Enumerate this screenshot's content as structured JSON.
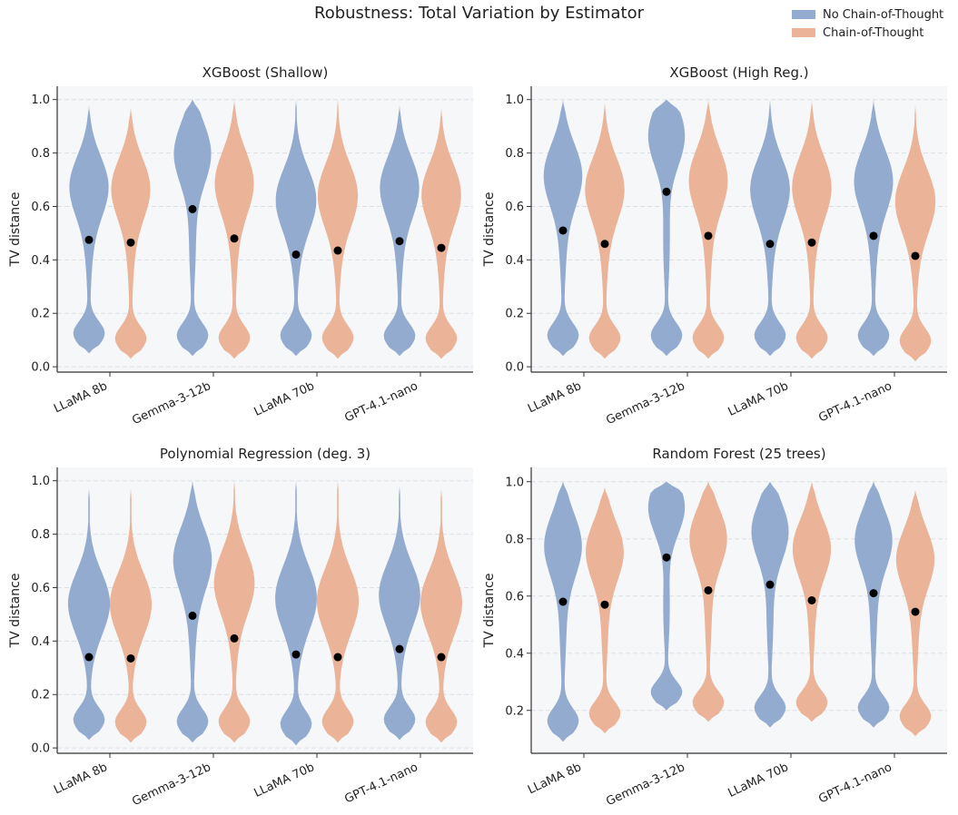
{
  "figure": {
    "title": "Robustness: Total Variation by Estimator"
  },
  "legend": [
    {
      "label": "No Chain-of-Thought",
      "color": "#94abd0"
    },
    {
      "label": "Chain-of-Thought",
      "color": "#ebb398"
    }
  ],
  "colors": {
    "no_cot": "#94abd0",
    "cot": "#ebb398",
    "mean_marker": "#000000",
    "panel_background": "#f6f7f9",
    "grid": "#dcdfe6"
  },
  "chart_data": [
    {
      "type": "violin",
      "title": "XGBoost (Shallow)",
      "ylabel": "TV distance",
      "ylim": [
        -0.02,
        1.05
      ],
      "yticks": [
        "0.0",
        "0.2",
        "0.4",
        "0.6",
        "0.8",
        "1.0"
      ],
      "ytick_values": [
        0,
        0.2,
        0.4,
        0.6,
        0.8,
        1.0
      ],
      "grid": "horizontal dashed",
      "categories": [
        "LLaMA 8b",
        "Gemma-3-12b",
        "LLaMA 70b",
        "GPT-4.1-nano"
      ],
      "series": [
        {
          "name": "No Chain-of-Thought",
          "means": [
            0.475,
            0.59,
            0.42,
            0.47
          ],
          "ranges": [
            [
              0.05,
              0.98
            ],
            [
              0.04,
              1.0
            ],
            [
              0.04,
              1.0
            ],
            [
              0.04,
              0.98
            ]
          ]
        },
        {
          "name": "Chain-of-Thought",
          "means": [
            0.465,
            0.48,
            0.435,
            0.445
          ],
          "ranges": [
            [
              0.03,
              0.97
            ],
            [
              0.03,
              1.0
            ],
            [
              0.03,
              1.0
            ],
            [
              0.03,
              0.97
            ]
          ]
        }
      ]
    },
    {
      "type": "violin",
      "title": "XGBoost (High Reg.)",
      "ylabel": "TV distance",
      "ylim": [
        -0.02,
        1.05
      ],
      "yticks": [
        "0.0",
        "0.2",
        "0.4",
        "0.6",
        "0.8",
        "1.0"
      ],
      "ytick_values": [
        0,
        0.2,
        0.4,
        0.6,
        0.8,
        1.0
      ],
      "grid": "horizontal dashed",
      "categories": [
        "LLaMA 8b",
        "Gemma-3-12b",
        "LLaMA 70b",
        "GPT-4.1-nano"
      ],
      "series": [
        {
          "name": "No Chain-of-Thought",
          "means": [
            0.51,
            0.655,
            0.46,
            0.49
          ],
          "ranges": [
            [
              0.04,
              1.0
            ],
            [
              0.04,
              1.0
            ],
            [
              0.04,
              1.0
            ],
            [
              0.04,
              1.0
            ]
          ]
        },
        {
          "name": "Chain-of-Thought",
          "means": [
            0.46,
            0.49,
            0.465,
            0.415
          ],
          "ranges": [
            [
              0.03,
              0.99
            ],
            [
              0.03,
              1.0
            ],
            [
              0.03,
              1.0
            ],
            [
              0.02,
              0.98
            ]
          ]
        }
      ]
    },
    {
      "type": "violin",
      "title": "Polynomial Regression (deg. 3)",
      "ylabel": "TV distance",
      "ylim": [
        -0.02,
        1.05
      ],
      "yticks": [
        "0.0",
        "0.2",
        "0.4",
        "0.6",
        "0.8",
        "1.0"
      ],
      "ytick_values": [
        0,
        0.2,
        0.4,
        0.6,
        0.8,
        1.0
      ],
      "grid": "horizontal dashed",
      "categories": [
        "LLaMA 8b",
        "Gemma-3-12b",
        "LLaMA 70b",
        "GPT-4.1-nano"
      ],
      "series": [
        {
          "name": "No Chain-of-Thought",
          "means": [
            0.34,
            0.495,
            0.35,
            0.37
          ],
          "ranges": [
            [
              0.03,
              0.97
            ],
            [
              0.02,
              1.0
            ],
            [
              0.01,
              1.0
            ],
            [
              0.03,
              0.98
            ]
          ]
        },
        {
          "name": "Chain-of-Thought",
          "means": [
            0.335,
            0.41,
            0.34,
            0.34
          ],
          "ranges": [
            [
              0.02,
              0.97
            ],
            [
              0.02,
              1.0
            ],
            [
              0.02,
              1.0
            ],
            [
              0.02,
              0.97
            ]
          ]
        }
      ]
    },
    {
      "type": "violin",
      "title": "Random Forest (25 trees)",
      "ylabel": "TV distance",
      "ylim": [
        0.05,
        1.05
      ],
      "yticks": [
        "0.2",
        "0.4",
        "0.6",
        "0.8",
        "1.0"
      ],
      "ytick_values": [
        0.2,
        0.4,
        0.6,
        0.8,
        1.0
      ],
      "grid": "horizontal dashed",
      "categories": [
        "LLaMA 8b",
        "Gemma-3-12b",
        "LLaMA 70b",
        "GPT-4.1-nano"
      ],
      "series": [
        {
          "name": "No Chain-of-Thought",
          "means": [
            0.58,
            0.735,
            0.64,
            0.61
          ],
          "ranges": [
            [
              0.09,
              1.0
            ],
            [
              0.2,
              1.0
            ],
            [
              0.14,
              1.0
            ],
            [
              0.14,
              1.0
            ]
          ]
        },
        {
          "name": "Chain-of-Thought",
          "means": [
            0.57,
            0.62,
            0.585,
            0.545
          ],
          "ranges": [
            [
              0.12,
              0.98
            ],
            [
              0.16,
              1.0
            ],
            [
              0.16,
              1.0
            ],
            [
              0.11,
              0.97
            ]
          ]
        }
      ]
    }
  ]
}
